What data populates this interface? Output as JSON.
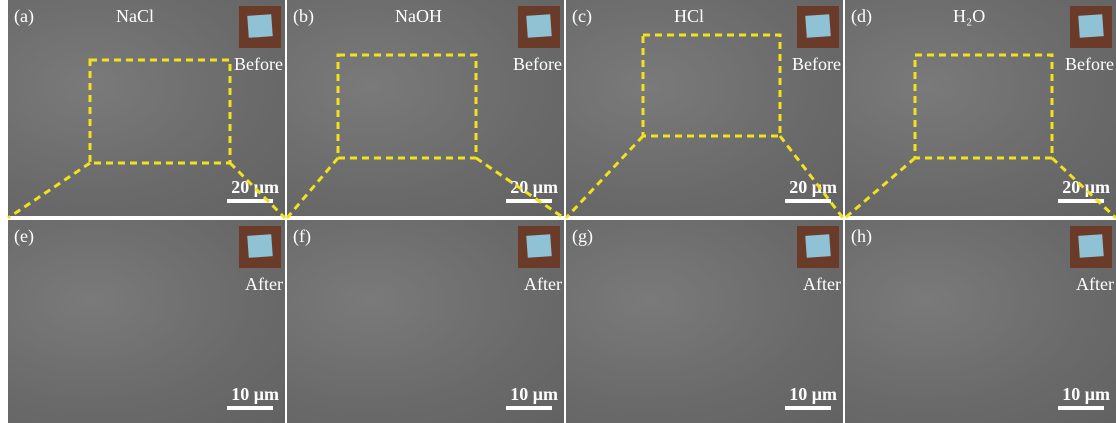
{
  "panels": [
    {
      "label": "(a)",
      "title": "NaCl",
      "state": "Before",
      "scale": "20 μm"
    },
    {
      "label": "(b)",
      "title": "NaOH",
      "state": "Before",
      "scale": "20 μm"
    },
    {
      "label": "(c)",
      "title": "HCl",
      "state": "Before",
      "scale": "20 μm"
    },
    {
      "label": "(d)",
      "title": "H₂O",
      "state": "Before",
      "scale": "20 μm"
    },
    {
      "label": "(e)",
      "state": "After",
      "scale": "10 μm"
    },
    {
      "label": "(f)",
      "state": "After",
      "scale": "10 μm"
    },
    {
      "label": "(g)",
      "state": "After",
      "scale": "10 μm"
    },
    {
      "label": "(h)",
      "state": "After",
      "scale": "10 μm"
    }
  ]
}
